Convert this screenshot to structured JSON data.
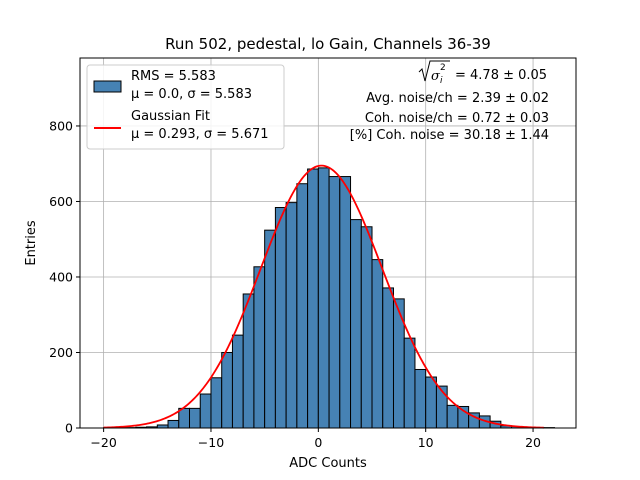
{
  "chart_data": {
    "type": "bar",
    "title": "Run 502, pedestal, lo Gain, Channels 36-39",
    "xlabel": "ADC Counts",
    "ylabel": "Entries",
    "xlim": [
      -22.2,
      24.0
    ],
    "ylim": [
      0,
      980
    ],
    "grid": true,
    "x_ticks": [
      -20,
      -10,
      0,
      10,
      20
    ],
    "x_tick_labels": [
      "−20",
      "−10",
      "0",
      "10",
      "20"
    ],
    "y_ticks": [
      0,
      200,
      400,
      600,
      800
    ],
    "y_tick_labels": [
      "0",
      "200",
      "400",
      "600",
      "800"
    ],
    "bin_width": 1,
    "histogram": {
      "name": "RMS = 5.583",
      "name_line2": "μ = 0.0, σ = 5.583",
      "color": "#4682b4",
      "edge_color": "#000000",
      "bins": [
        {
          "x0": -20,
          "x1": -19,
          "count": 1
        },
        {
          "x0": -19,
          "x1": -18,
          "count": 0
        },
        {
          "x0": -18,
          "x1": -17,
          "count": 1
        },
        {
          "x0": -17,
          "x1": -16,
          "count": 2
        },
        {
          "x0": -16,
          "x1": -15,
          "count": 3
        },
        {
          "x0": -15,
          "x1": -14,
          "count": 8
        },
        {
          "x0": -14,
          "x1": -13,
          "count": 20
        },
        {
          "x0": -13,
          "x1": -12,
          "count": 52
        },
        {
          "x0": -12,
          "x1": -11,
          "count": 52
        },
        {
          "x0": -11,
          "x1": -10,
          "count": 90
        },
        {
          "x0": -10,
          "x1": -9,
          "count": 133
        },
        {
          "x0": -9,
          "x1": -8,
          "count": 200
        },
        {
          "x0": -8,
          "x1": -7,
          "count": 246
        },
        {
          "x0": -7,
          "x1": -6,
          "count": 355
        },
        {
          "x0": -6,
          "x1": -5,
          "count": 427
        },
        {
          "x0": -5,
          "x1": -4,
          "count": 524
        },
        {
          "x0": -4,
          "x1": -3,
          "count": 584
        },
        {
          "x0": -3,
          "x1": -2,
          "count": 597
        },
        {
          "x0": -2,
          "x1": -1,
          "count": 647
        },
        {
          "x0": -1,
          "x1": 0,
          "count": 686
        },
        {
          "x0": 0,
          "x1": 1,
          "count": 689
        },
        {
          "x0": 1,
          "x1": 2,
          "count": 666
        },
        {
          "x0": 2,
          "x1": 3,
          "count": 666
        },
        {
          "x0": 3,
          "x1": 4,
          "count": 552
        },
        {
          "x0": 4,
          "x1": 5,
          "count": 533
        },
        {
          "x0": 5,
          "x1": 6,
          "count": 446
        },
        {
          "x0": 6,
          "x1": 7,
          "count": 371
        },
        {
          "x0": 7,
          "x1": 8,
          "count": 342
        },
        {
          "x0": 8,
          "x1": 9,
          "count": 238
        },
        {
          "x0": 9,
          "x1": 10,
          "count": 155
        },
        {
          "x0": 10,
          "x1": 11,
          "count": 135
        },
        {
          "x0": 11,
          "x1": 12,
          "count": 111
        },
        {
          "x0": 12,
          "x1": 13,
          "count": 60
        },
        {
          "x0": 13,
          "x1": 14,
          "count": 57
        },
        {
          "x0": 14,
          "x1": 15,
          "count": 40
        },
        {
          "x0": 15,
          "x1": 16,
          "count": 32
        },
        {
          "x0": 16,
          "x1": 17,
          "count": 18
        },
        {
          "x0": 17,
          "x1": 18,
          "count": 6
        },
        {
          "x0": 18,
          "x1": 19,
          "count": 4
        },
        {
          "x0": 19,
          "x1": 20,
          "count": 2
        },
        {
          "x0": 20,
          "x1": 21,
          "count": 1
        },
        {
          "x0": 21,
          "x1": 22,
          "count": 1
        }
      ]
    },
    "fit": {
      "name": "Gaussian Fit",
      "name_line2": "μ = 0.293, σ = 5.671",
      "color": "#ff0000",
      "amplitude": 695,
      "mu": 0.293,
      "sigma": 5.671,
      "x_range": [
        -20,
        21
      ]
    },
    "legend_position": "top-left",
    "stats_box": {
      "position": "top-right",
      "line1_suffix": "= 4.78 ± 0.05",
      "line2": "Avg. noise/ch = 2.39 ± 0.02",
      "line3": "Coh. noise/ch = 0.72 ± 0.03",
      "line4": "[%] Coh. noise = 30.18 ± 1.44"
    }
  }
}
